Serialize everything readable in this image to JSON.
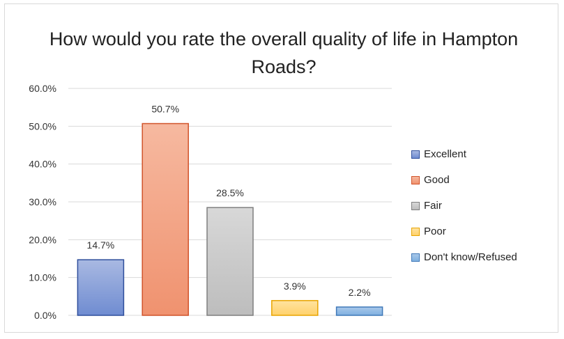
{
  "chart_data": {
    "type": "bar",
    "title": "How would you rate the overall quality of life in Hampton Roads?",
    "categories": [
      "Excellent",
      "Good",
      "Fair",
      "Poor",
      "Don't know/Refused"
    ],
    "values": [
      14.7,
      50.7,
      28.5,
      3.9,
      2.2
    ],
    "data_labels": [
      "14.7%",
      "50.7%",
      "28.5%",
      "3.9%",
      "2.2%"
    ],
    "ylim": [
      0,
      60
    ],
    "yticks": [
      0,
      10,
      20,
      30,
      40,
      50,
      60
    ],
    "ytick_labels": [
      "0.0%",
      "10.0%",
      "20.0%",
      "30.0%",
      "40.0%",
      "50.0%",
      "60.0%"
    ],
    "grid": true,
    "legend_position": "right",
    "colors": [
      {
        "fill_top": "#a9b9e2",
        "fill_bottom": "#6f8cd1",
        "stroke": "#2f4f9c"
      },
      {
        "fill_top": "#f6b9a0",
        "fill_bottom": "#f0926f",
        "stroke": "#d1532a"
      },
      {
        "fill_top": "#d8d8d8",
        "fill_bottom": "#bdbdbd",
        "stroke": "#7f7f7f"
      },
      {
        "fill_top": "#ffe3a0",
        "fill_bottom": "#ffd16b",
        "stroke": "#e8a400"
      },
      {
        "fill_top": "#a9c8ea",
        "fill_bottom": "#7fb0e0",
        "stroke": "#3f78b8"
      }
    ]
  }
}
